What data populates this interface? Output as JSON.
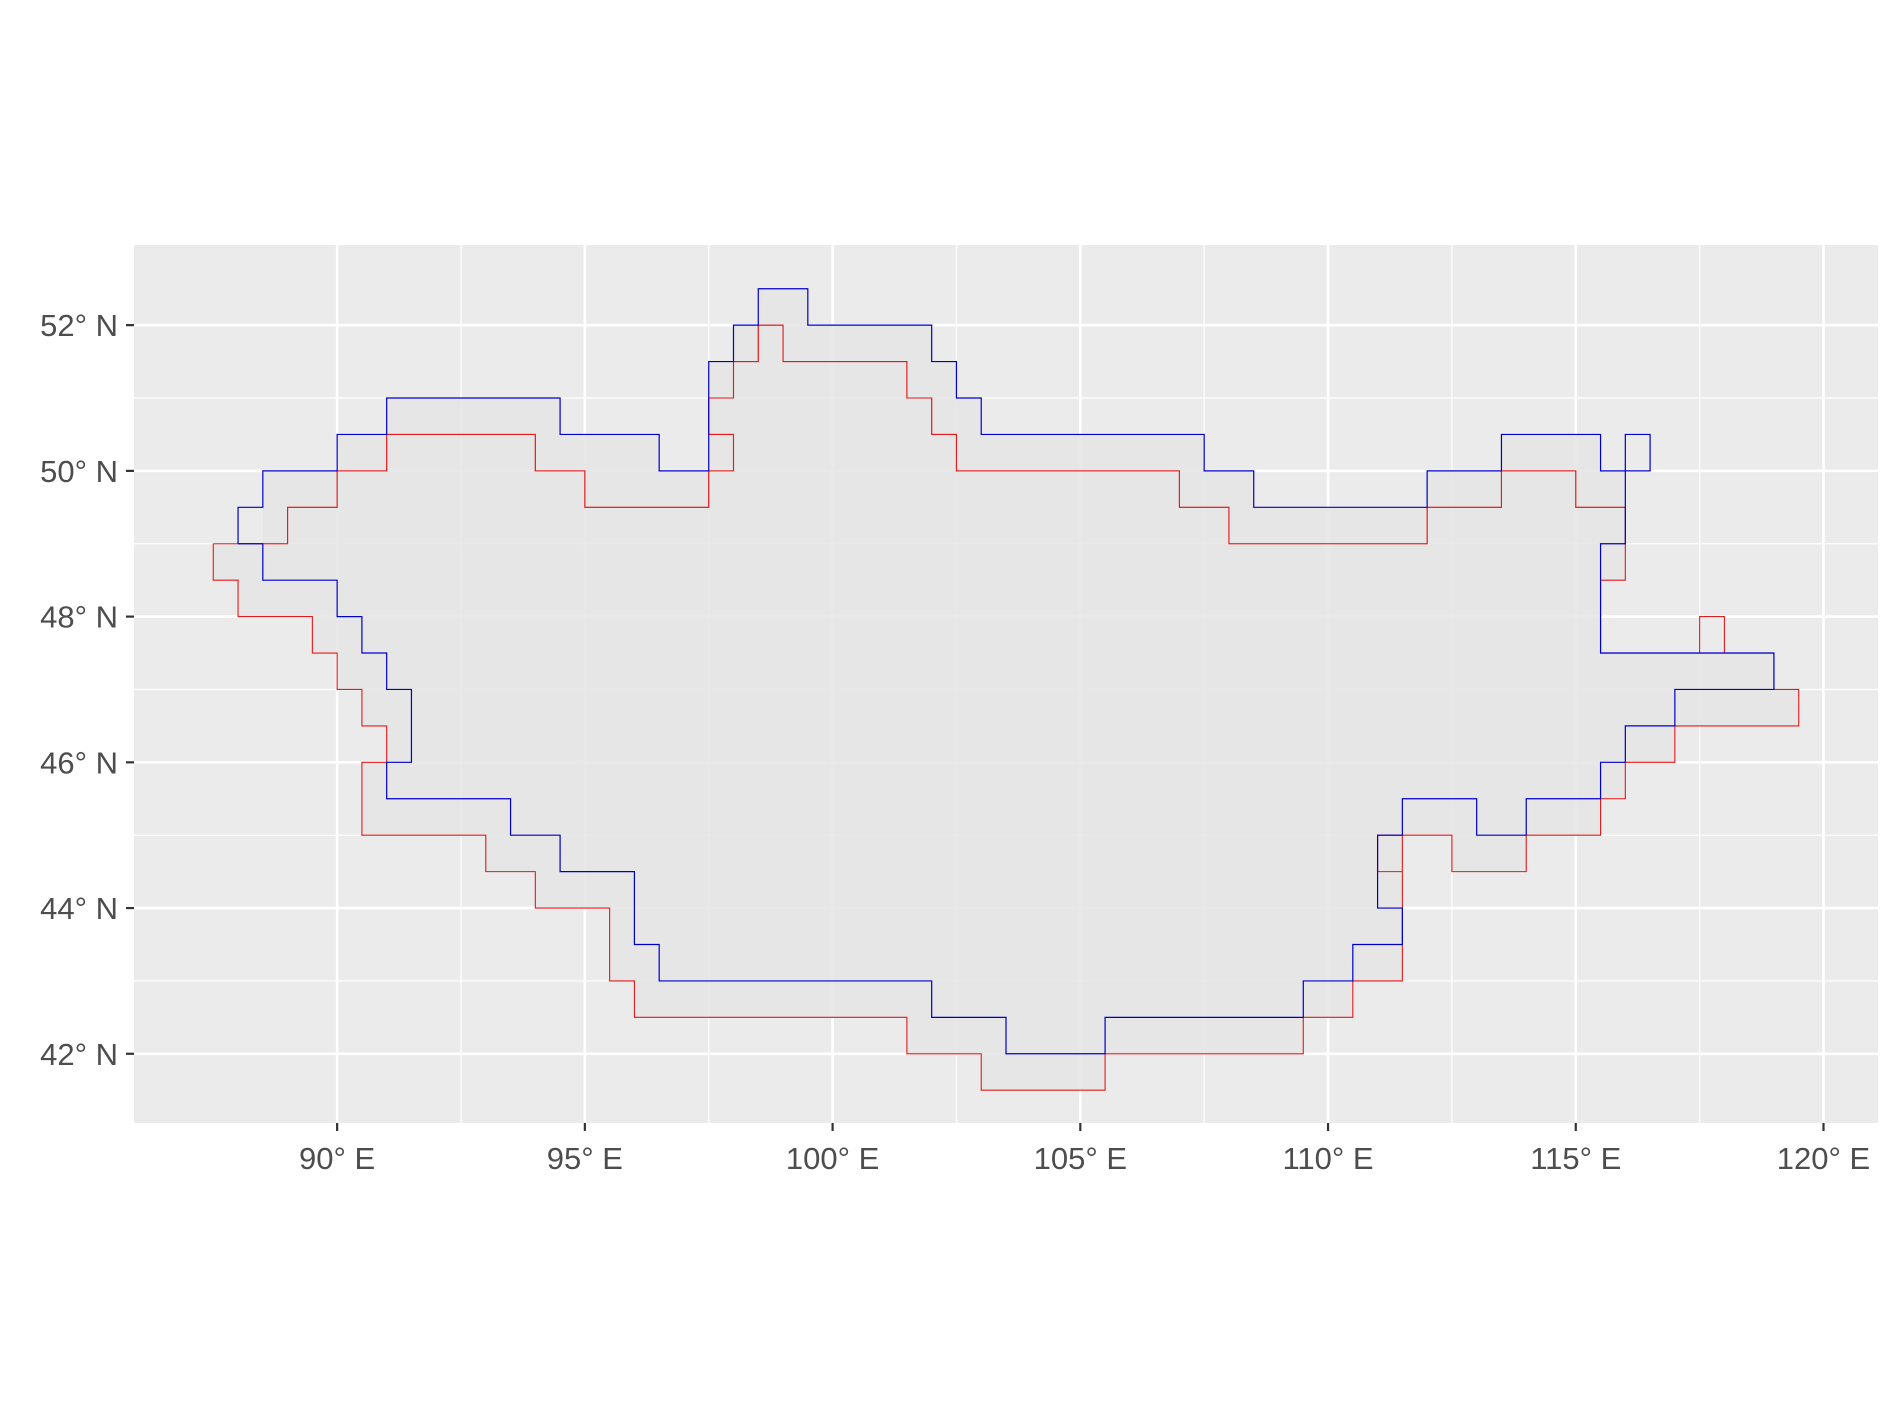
{
  "map": {
    "x_axis": {
      "range": [
        85.9,
        121.1
      ],
      "ticks": [
        {
          "value": 90,
          "label": "90° E"
        },
        {
          "value": 95,
          "label": "95° E"
        },
        {
          "value": 100,
          "label": "100° E"
        },
        {
          "value": 105,
          "label": "105° E"
        },
        {
          "value": 110,
          "label": "110° E"
        },
        {
          "value": 115,
          "label": "115° E"
        },
        {
          "value": 120,
          "label": "120° E"
        }
      ]
    },
    "y_axis": {
      "range": [
        41.05,
        53.1
      ],
      "ticks": [
        {
          "value": 42,
          "label": "42° N"
        },
        {
          "value": 44,
          "label": "44° N"
        },
        {
          "value": 46,
          "label": "46° N"
        },
        {
          "value": 48,
          "label": "48° N"
        },
        {
          "value": 50,
          "label": "50° N"
        },
        {
          "value": 52,
          "label": "52° N"
        }
      ]
    },
    "colors": {
      "panel_background": "#ebebeb",
      "grid": "#ffffff",
      "fill": "#e5e5e5",
      "outline_red": "#e41a1c",
      "outline_blue": "#0000cc",
      "tick_text": "#4d4d4d",
      "tick_mark": "#333333"
    },
    "outline_red": [
      [
        87.5,
        49
      ],
      [
        88.5,
        49
      ],
      [
        88.5,
        49
      ],
      [
        89,
        49
      ],
      [
        89,
        49.5
      ],
      [
        90,
        49.5
      ],
      [
        90,
        50
      ],
      [
        91,
        50
      ],
      [
        91,
        50.5
      ],
      [
        94,
        50.5
      ],
      [
        94,
        50
      ],
      [
        95,
        50
      ],
      [
        95,
        49.5
      ],
      [
        97.5,
        49.5
      ],
      [
        97.5,
        50
      ],
      [
        98,
        50
      ],
      [
        98,
        50.5
      ],
      [
        97.5,
        50.5
      ],
      [
        97.5,
        51
      ],
      [
        98,
        51
      ],
      [
        98,
        51.5
      ],
      [
        98.5,
        51.5
      ],
      [
        98.5,
        52
      ],
      [
        99,
        52
      ],
      [
        99,
        51.5
      ],
      [
        101.5,
        51.5
      ],
      [
        101.5,
        51
      ],
      [
        102,
        51
      ],
      [
        102,
        50.5
      ],
      [
        102.5,
        50.5
      ],
      [
        102.5,
        50
      ],
      [
        107,
        50
      ],
      [
        107,
        49.5
      ],
      [
        108,
        49.5
      ],
      [
        108,
        49
      ],
      [
        112,
        49
      ],
      [
        112,
        49.5
      ],
      [
        113.5,
        49.5
      ],
      [
        113.5,
        50
      ],
      [
        115,
        50
      ],
      [
        115,
        49.5
      ],
      [
        116,
        49.5
      ],
      [
        116,
        48.5
      ],
      [
        115.5,
        48.5
      ],
      [
        115.5,
        47.5
      ],
      [
        117.5,
        47.5
      ],
      [
        117.5,
        48
      ],
      [
        118,
        48
      ],
      [
        118,
        47.5
      ],
      [
        117.5,
        47.5
      ],
      [
        119,
        47.5
      ],
      [
        119,
        47
      ],
      [
        119.5,
        47
      ],
      [
        119.5,
        46.5
      ],
      [
        117,
        46.5
      ],
      [
        117,
        46
      ],
      [
        116,
        46
      ],
      [
        116,
        45.5
      ],
      [
        115.5,
        45.5
      ],
      [
        115.5,
        45
      ],
      [
        114,
        45
      ],
      [
        114,
        44.5
      ],
      [
        112.5,
        44.5
      ],
      [
        112.5,
        45
      ],
      [
        111.5,
        45
      ],
      [
        111.5,
        44.5
      ],
      [
        111,
        44.5
      ],
      [
        111,
        45
      ],
      [
        111.5,
        45
      ],
      [
        111.5,
        43
      ],
      [
        110.5,
        43
      ],
      [
        110.5,
        42.5
      ],
      [
        109.5,
        42.5
      ],
      [
        109.5,
        42
      ],
      [
        105.5,
        42
      ],
      [
        105.5,
        41.5
      ],
      [
        103,
        41.5
      ],
      [
        103,
        42
      ],
      [
        101.5,
        42
      ],
      [
        101.5,
        42.5
      ],
      [
        96,
        42.5
      ],
      [
        96,
        43
      ],
      [
        95.5,
        43
      ],
      [
        95.5,
        44
      ],
      [
        94,
        44
      ],
      [
        94,
        44.5
      ],
      [
        93,
        44.5
      ],
      [
        93,
        45
      ],
      [
        90.5,
        45
      ],
      [
        90.5,
        46
      ],
      [
        91,
        46
      ],
      [
        91,
        46.5
      ],
      [
        90.5,
        46.5
      ],
      [
        90.5,
        47
      ],
      [
        90,
        47
      ],
      [
        90,
        47.5
      ],
      [
        89.5,
        47.5
      ],
      [
        89.5,
        48
      ],
      [
        88,
        48
      ],
      [
        88,
        48.5
      ],
      [
        87.5,
        48.5
      ],
      [
        87.5,
        49
      ]
    ],
    "outline_blue": [
      [
        88,
        49
      ],
      [
        88,
        49.5
      ],
      [
        88.5,
        49.5
      ],
      [
        88.5,
        50
      ],
      [
        90,
        50
      ],
      [
        90,
        50.5
      ],
      [
        91,
        50.5
      ],
      [
        91,
        51
      ],
      [
        94.5,
        51
      ],
      [
        94.5,
        50.5
      ],
      [
        96.5,
        50.5
      ],
      [
        96.5,
        50
      ],
      [
        97.5,
        50
      ],
      [
        97.5,
        51.5
      ],
      [
        98,
        51.5
      ],
      [
        98,
        52
      ],
      [
        98.5,
        52
      ],
      [
        98.5,
        52.5
      ],
      [
        99.5,
        52.5
      ],
      [
        99.5,
        52
      ],
      [
        102,
        52
      ],
      [
        102,
        51.5
      ],
      [
        102.5,
        51.5
      ],
      [
        102.5,
        51
      ],
      [
        103,
        51
      ],
      [
        103,
        50.5
      ],
      [
        107.5,
        50.5
      ],
      [
        107.5,
        50
      ],
      [
        108.5,
        50
      ],
      [
        108.5,
        49.5
      ],
      [
        112,
        49.5
      ],
      [
        112,
        50
      ],
      [
        113.5,
        50
      ],
      [
        113.5,
        50.5
      ],
      [
        115.5,
        50.5
      ],
      [
        115.5,
        50
      ],
      [
        116,
        50
      ],
      [
        116,
        50.5
      ],
      [
        116.5,
        50.5
      ],
      [
        116.5,
        50
      ],
      [
        116,
        50
      ],
      [
        116,
        49
      ],
      [
        115.5,
        49
      ],
      [
        115.5,
        47.5
      ],
      [
        119,
        47.5
      ],
      [
        119,
        47
      ],
      [
        117,
        47
      ],
      [
        117,
        46.5
      ],
      [
        116,
        46.5
      ],
      [
        116,
        46
      ],
      [
        115.5,
        46
      ],
      [
        115.5,
        45.5
      ],
      [
        114,
        45.5
      ],
      [
        114,
        45
      ],
      [
        113,
        45
      ],
      [
        113,
        45.5
      ],
      [
        111.5,
        45.5
      ],
      [
        111.5,
        45
      ],
      [
        111,
        45
      ],
      [
        111,
        44
      ],
      [
        111.5,
        44
      ],
      [
        111.5,
        43.5
      ],
      [
        110.5,
        43.5
      ],
      [
        110.5,
        43
      ],
      [
        109.5,
        43
      ],
      [
        109.5,
        42.5
      ],
      [
        105.5,
        42.5
      ],
      [
        105.5,
        42
      ],
      [
        103.5,
        42
      ],
      [
        103.5,
        42.5
      ],
      [
        102,
        42.5
      ],
      [
        102,
        43
      ],
      [
        96.5,
        43
      ],
      [
        96.5,
        43.5
      ],
      [
        96,
        43.5
      ],
      [
        96,
        44.5
      ],
      [
        94.5,
        44.5
      ],
      [
        94.5,
        45
      ],
      [
        93.5,
        45
      ],
      [
        93.5,
        45.5
      ],
      [
        91,
        45.5
      ],
      [
        91,
        46
      ],
      [
        91.5,
        46
      ],
      [
        91.5,
        47
      ],
      [
        91,
        47
      ],
      [
        91,
        47.5
      ],
      [
        90.5,
        47.5
      ],
      [
        90.5,
        48
      ],
      [
        90,
        48
      ],
      [
        90,
        48.5
      ],
      [
        88.5,
        48.5
      ],
      [
        88.5,
        49
      ],
      [
        88,
        49
      ]
    ],
    "outline_red_top": [
      [
        88.5,
        49
      ],
      [
        89,
        49
      ],
      [
        89,
        49.5
      ],
      [
        90,
        49.5
      ],
      [
        90,
        50
      ],
      [
        91,
        50
      ],
      [
        91,
        50.5
      ],
      [
        94,
        50.5
      ],
      [
        94,
        50
      ],
      [
        95,
        50
      ],
      [
        95,
        49.5
      ],
      [
        97.5,
        49.5
      ],
      [
        97.5,
        50
      ],
      [
        98,
        50
      ],
      [
        98,
        50.5
      ],
      [
        97.5,
        50.5
      ],
      [
        97.5,
        51
      ],
      [
        98,
        51
      ],
      [
        98,
        51.5
      ],
      [
        98.5,
        51.5
      ],
      [
        98.5,
        52
      ],
      [
        99,
        52
      ],
      [
        99,
        51.5
      ],
      [
        101.5,
        51.5
      ],
      [
        101.5,
        51
      ],
      [
        102,
        51
      ],
      [
        102,
        50.5
      ],
      [
        102.5,
        50.5
      ],
      [
        102.5,
        50
      ],
      [
        107,
        50
      ],
      [
        107,
        49.5
      ],
      [
        108,
        49.5
      ],
      [
        108,
        49
      ],
      [
        112,
        49
      ],
      [
        112,
        49.5
      ],
      [
        113.5,
        49.5
      ],
      [
        113.5,
        50
      ],
      [
        115,
        50
      ],
      [
        115,
        49.5
      ],
      [
        116,
        49.5
      ]
    ],
    "fill_polygon": [
      [
        88,
        49
      ],
      [
        88.5,
        49
      ],
      [
        88.5,
        50
      ],
      [
        90,
        50
      ],
      [
        90,
        50.5
      ],
      [
        91,
        50.5
      ],
      [
        91,
        51
      ],
      [
        94.5,
        51
      ],
      [
        94.5,
        50.5
      ],
      [
        96.5,
        50.5
      ],
      [
        96.5,
        50
      ],
      [
        97.5,
        50
      ],
      [
        97.5,
        51.5
      ],
      [
        98,
        51.5
      ],
      [
        98,
        52
      ],
      [
        98.5,
        52
      ],
      [
        98.5,
        52.5
      ],
      [
        99.5,
        52.5
      ],
      [
        99.5,
        52
      ],
      [
        102,
        52
      ],
      [
        102,
        51.5
      ],
      [
        102.5,
        51.5
      ],
      [
        102.5,
        51
      ],
      [
        103,
        51
      ],
      [
        103,
        50.5
      ],
      [
        107.5,
        50.5
      ],
      [
        107.5,
        50
      ],
      [
        108.5,
        50
      ],
      [
        108.5,
        49.5
      ],
      [
        112,
        49.5
      ],
      [
        112,
        50
      ],
      [
        113.5,
        50
      ],
      [
        113.5,
        50.5
      ],
      [
        115.5,
        50.5
      ],
      [
        115.5,
        50
      ],
      [
        116,
        50
      ],
      [
        116,
        48.5
      ],
      [
        115.5,
        48.5
      ],
      [
        115.5,
        47.5
      ],
      [
        119,
        47.5
      ],
      [
        119,
        47
      ],
      [
        119.5,
        47
      ],
      [
        119.5,
        46.5
      ],
      [
        117,
        46.5
      ],
      [
        117,
        46
      ],
      [
        116,
        46
      ],
      [
        116,
        45.5
      ],
      [
        115.5,
        45.5
      ],
      [
        115.5,
        45
      ],
      [
        114,
        45
      ],
      [
        114,
        44.5
      ],
      [
        112.5,
        44.5
      ],
      [
        112.5,
        45
      ],
      [
        111.5,
        45
      ],
      [
        111.5,
        43
      ],
      [
        110.5,
        43
      ],
      [
        110.5,
        42.5
      ],
      [
        109.5,
        42.5
      ],
      [
        109.5,
        42
      ],
      [
        105.5,
        42
      ],
      [
        105.5,
        41.5
      ],
      [
        103,
        41.5
      ],
      [
        103,
        42
      ],
      [
        101.5,
        42
      ],
      [
        101.5,
        42.5
      ],
      [
        96,
        42.5
      ],
      [
        96,
        43
      ],
      [
        95.5,
        43
      ],
      [
        95.5,
        44
      ],
      [
        94,
        44
      ],
      [
        94,
        44.5
      ],
      [
        93,
        44.5
      ],
      [
        93,
        45
      ],
      [
        90.5,
        45
      ],
      [
        90.5,
        46
      ],
      [
        91,
        46
      ],
      [
        91,
        46.5
      ],
      [
        90.5,
        46.5
      ],
      [
        90.5,
        47
      ],
      [
        90,
        47
      ],
      [
        90,
        47.5
      ],
      [
        89.5,
        47.5
      ],
      [
        89.5,
        48
      ],
      [
        88,
        48
      ],
      [
        88,
        48.5
      ],
      [
        87.5,
        48.5
      ],
      [
        87.5,
        49
      ],
      [
        88,
        49
      ]
    ]
  }
}
